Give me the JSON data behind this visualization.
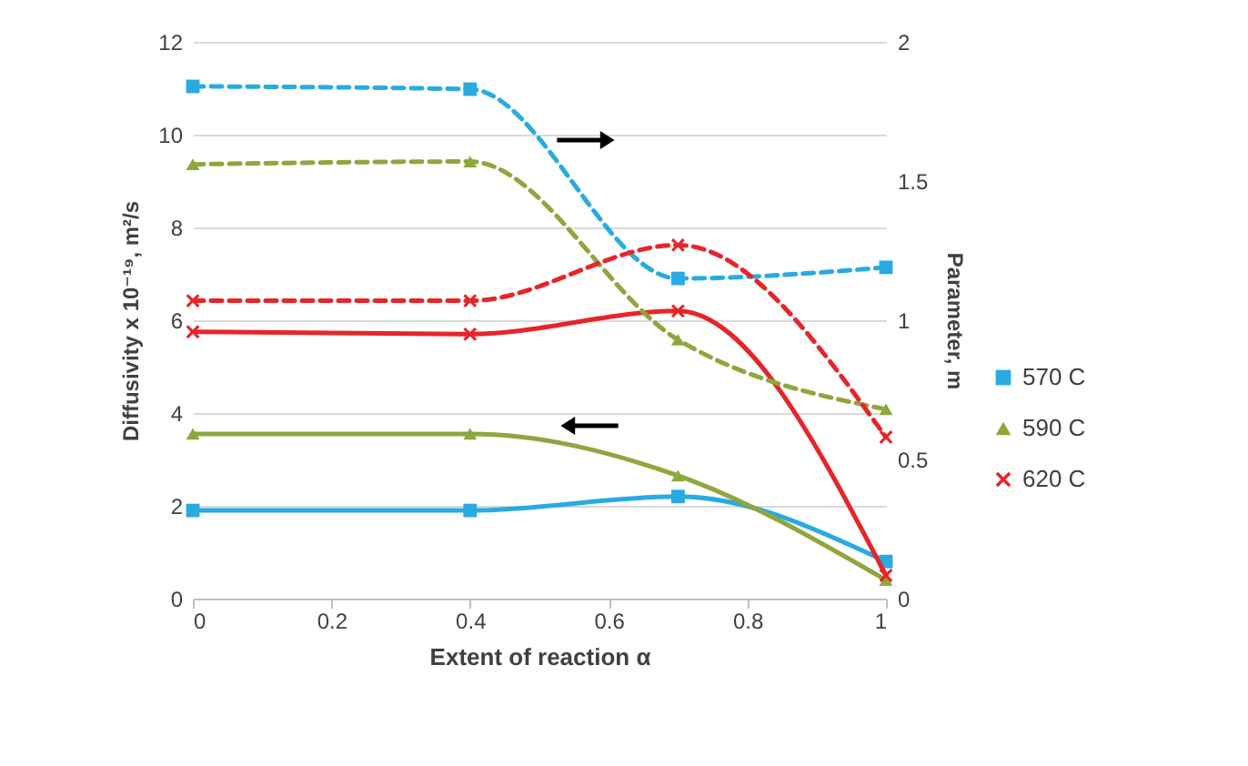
{
  "chart_data": {
    "type": "line",
    "xlabel": "Extent of reaction α",
    "ylabel": "Diffusivity x 10⁻¹⁹, m²/s",
    "y2label": "Parameter, m",
    "xlim": [
      0,
      1
    ],
    "xticks": [
      0,
      0.2,
      0.4,
      0.6,
      0.8,
      1
    ],
    "ylim": [
      0,
      12
    ],
    "yticks": [
      0,
      2,
      4,
      6,
      8,
      10,
      12
    ],
    "y2lim": [
      0,
      2
    ],
    "y2ticks": [
      0,
      0.5,
      1,
      1.5,
      2
    ],
    "grid": "y",
    "legend": "right",
    "series": [
      {
        "name": "570 C",
        "color": "#29aae1",
        "marker": "square",
        "line_style": "solid",
        "x": [
          0,
          0.4,
          0.7,
          1
        ],
        "values": [
          1.9,
          1.9,
          2.2,
          0.8
        ]
      },
      {
        "name": "590 C",
        "color": "#8ea73e",
        "marker": "triangle",
        "line_style": "solid",
        "x": [
          0,
          0.4,
          0.7,
          1
        ],
        "values": [
          3.55,
          3.55,
          2.65,
          0.4
        ]
      },
      {
        "name": "620 C",
        "color": "#e6252a",
        "marker": "cross",
        "line_style": "solid",
        "x": [
          0,
          0.4,
          0.7,
          1
        ],
        "values": [
          5.75,
          5.7,
          6.2,
          0.5
        ]
      },
      {
        "color": "#29aae1",
        "marker": "square",
        "line_style": "dashed",
        "axis": "y2",
        "x": [
          0,
          0.4,
          0.7,
          1
        ],
        "values": [
          1.84,
          1.83,
          1.15,
          1.19
        ]
      },
      {
        "color": "#8ea73e",
        "marker": "triangle",
        "line_style": "dashed",
        "axis": "y2",
        "x": [
          0,
          0.4,
          0.7,
          1
        ],
        "values": [
          1.56,
          1.57,
          0.93,
          0.68
        ]
      },
      {
        "color": "#e6252a",
        "marker": "cross",
        "line_style": "dashed",
        "axis": "y2",
        "x": [
          0,
          0.4,
          0.7,
          1
        ],
        "values": [
          1.07,
          1.07,
          1.27,
          0.58
        ]
      }
    ]
  }
}
